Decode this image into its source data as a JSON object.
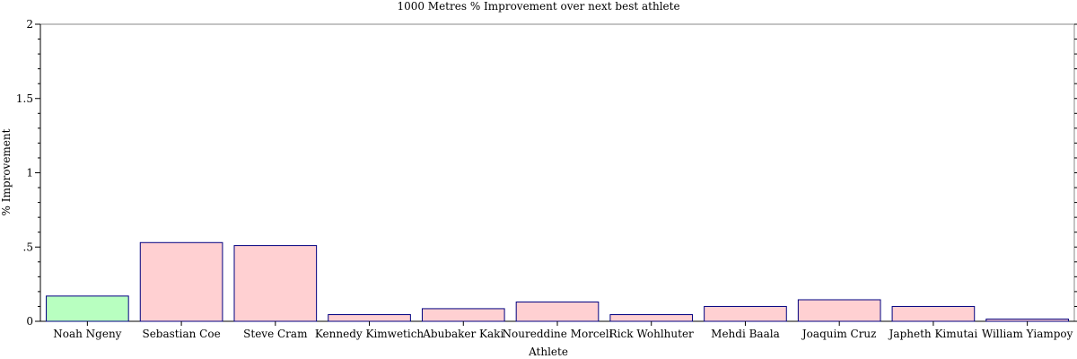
{
  "chart_data": {
    "type": "bar",
    "title": "1000 Metres % Improvement over next best athlete",
    "xlabel": "Athlete",
    "ylabel": "% Improvement",
    "ylim": [
      0,
      2
    ],
    "yticks": [
      {
        "value": 0,
        "label": "0"
      },
      {
        "value": 0.5,
        "label": ".5"
      },
      {
        "value": 1,
        "label": "1"
      },
      {
        "value": 1.5,
        "label": "1.5"
      },
      {
        "value": 2,
        "label": "2"
      }
    ],
    "categories": [
      "Noah Ngeny",
      "Sebastian Coe",
      "Steve Cram",
      "Kennedy Kimwetich",
      "Abubaker Kaki",
      "Noureddine Morceli",
      "Rick Wohlhuter",
      "Mehdi Baala",
      "Joaquim Cruz",
      "Japheth Kimutai",
      "William Yiampoy"
    ],
    "values": [
      0.17,
      0.53,
      0.51,
      0.045,
      0.085,
      0.13,
      0.045,
      0.1,
      0.145,
      0.1,
      0.015
    ],
    "colors": [
      "#b8ffc0",
      "#ffd0d2",
      "#ffd0d2",
      "#ffd0d2",
      "#ffd0d2",
      "#ffd0d2",
      "#ffd0d2",
      "#ffd0d2",
      "#ffd0d2",
      "#ffd0d2",
      "#ffd0d2"
    ],
    "bar_edge_color": "#000080",
    "grid": false,
    "legend": "none"
  }
}
